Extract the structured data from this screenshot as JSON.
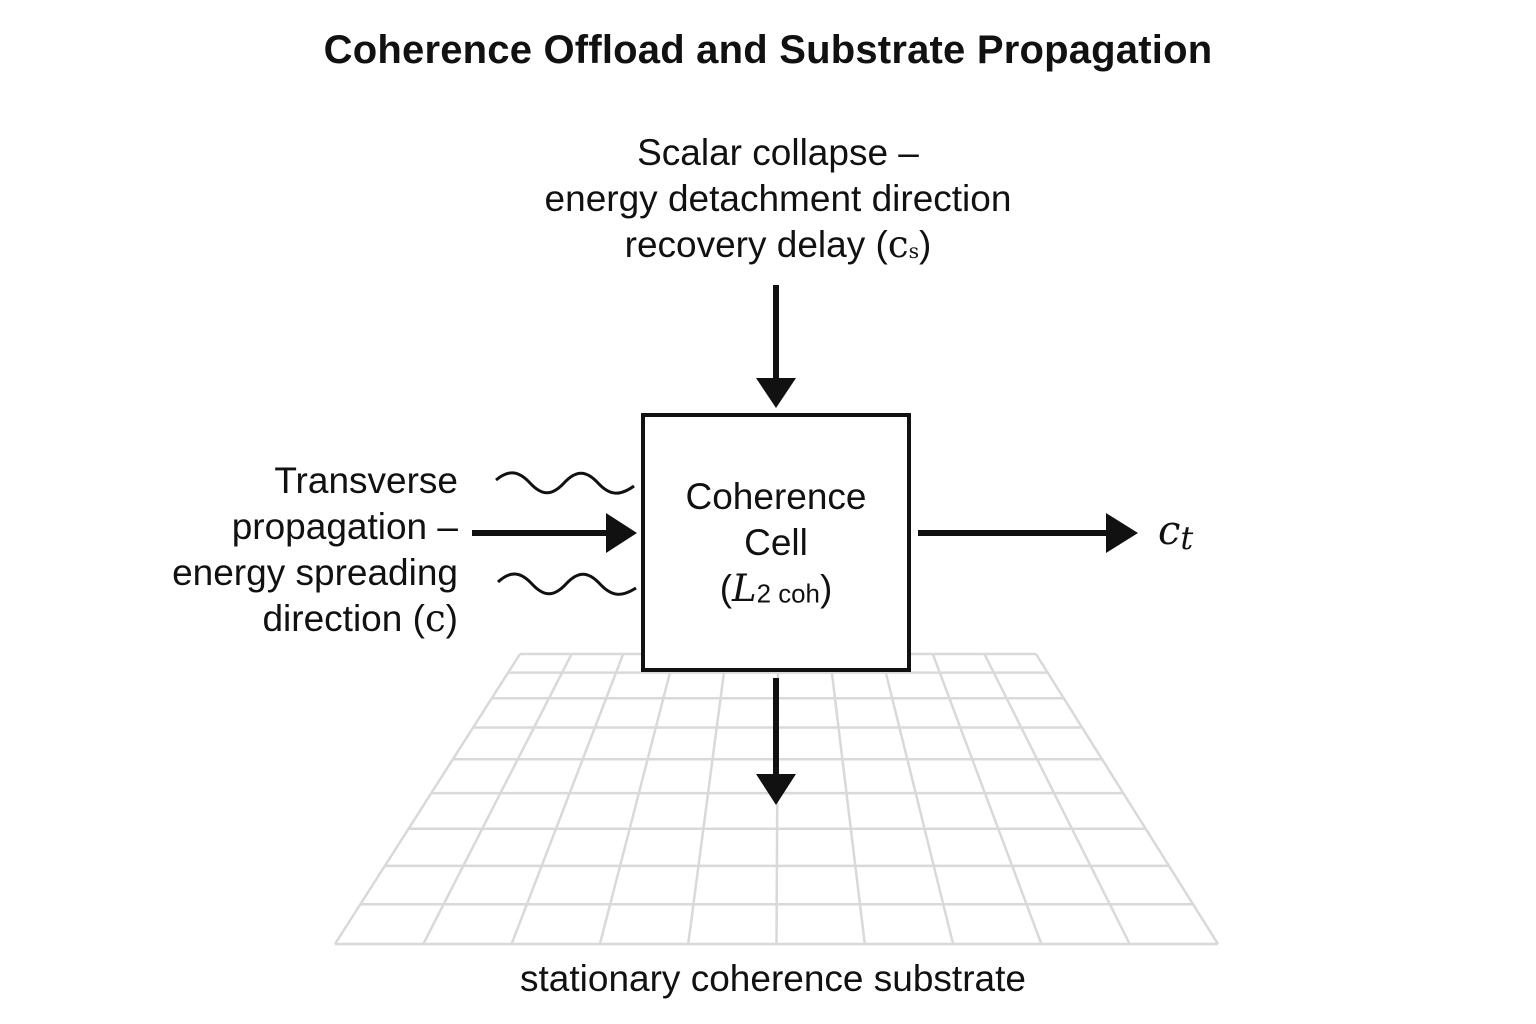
{
  "title": "Coherence Offload and Substrate Propagation",
  "top_label": {
    "line1": "Scalar collapse –",
    "line2": "energy detachment direction",
    "line3_text": "recovery delay (",
    "line3_symbol": "c",
    "line3_sub": "s",
    "line3_close": ")"
  },
  "left_label": {
    "line1": "Transverse",
    "line2": "propagation –",
    "line3": "energy spreading",
    "line4_text": "direction (",
    "line4_symbol": "c",
    "line4_close": ")"
  },
  "cell": {
    "line1": "Coherence",
    "line2": "Cell",
    "symbol_open": "(",
    "symbol": "L",
    "symbol_sub": "2 coh",
    "symbol_close": ")"
  },
  "output_label": {
    "symbol": "c",
    "sub": "t"
  },
  "substrate_label": "stationary coherence substrate",
  "colors": {
    "ink": "#111111",
    "grid": "#d9d9d9",
    "background": "#ffffff"
  }
}
